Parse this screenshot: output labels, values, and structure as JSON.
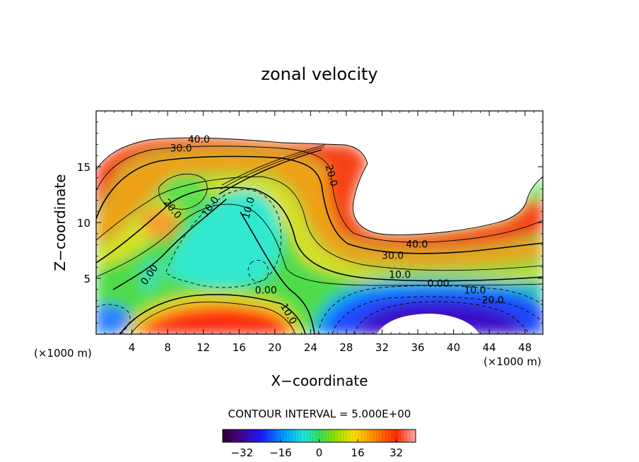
{
  "chart_data": {
    "type": "heatmap",
    "title": "zonal velocity",
    "xlabel": "X−coordinate",
    "ylabel": "Z−coordinate",
    "x_unit_left": "(×1000 m)",
    "x_unit_right": "(×1000 m)",
    "xlim": [
      0,
      50
    ],
    "ylim": [
      0,
      20
    ],
    "xticks": [
      4,
      8,
      12,
      16,
      20,
      24,
      28,
      32,
      36,
      40,
      44,
      48
    ],
    "yticks": [
      5,
      10,
      15
    ],
    "contour_interval_text": "CONTOUR INTERVAL = 5.000E+00",
    "contour_interval": 5,
    "colorbar": {
      "range": [
        -40,
        40
      ],
      "ticks": [
        -32,
        -16,
        0,
        16,
        32
      ],
      "tick_labels": [
        "−32",
        "−16",
        "0",
        "16",
        "32"
      ]
    },
    "contour_labels": [
      {
        "text": "40.0",
        "x": 11.5,
        "y": 17.4
      },
      {
        "text": "30.0",
        "x": 9.5,
        "y": 16.6
      },
      {
        "text": "20.0",
        "x": 8.5,
        "y": 11.2,
        "rot": 50
      },
      {
        "text": "10.0",
        "x": 12.8,
        "y": 11.4,
        "rot": -55
      },
      {
        "text": "10.0",
        "x": 17.1,
        "y": 11.3,
        "rot": -75
      },
      {
        "text": "0.00",
        "x": 6.0,
        "y": 5.3,
        "rot": -55
      },
      {
        "text": "0.00",
        "x": 19.0,
        "y": 3.9
      },
      {
        "text": "10.0",
        "x": 21.5,
        "y": 1.8,
        "rot": 60
      },
      {
        "text": "20.0",
        "x": 26.3,
        "y": 14.2,
        "rot": 75
      },
      {
        "text": "40.0",
        "x": 35.9,
        "y": 8.0
      },
      {
        "text": "30.0",
        "x": 33.2,
        "y": 7.0
      },
      {
        "text": "10.0",
        "x": 34.0,
        "y": 5.3
      },
      {
        "text": "0.00",
        "x": 38.3,
        "y": 4.5
      },
      {
        "text": "10.0",
        "x": 42.4,
        "y": 3.9
      },
      {
        "text": "20.0",
        "x": 44.4,
        "y": 3.0
      }
    ]
  }
}
